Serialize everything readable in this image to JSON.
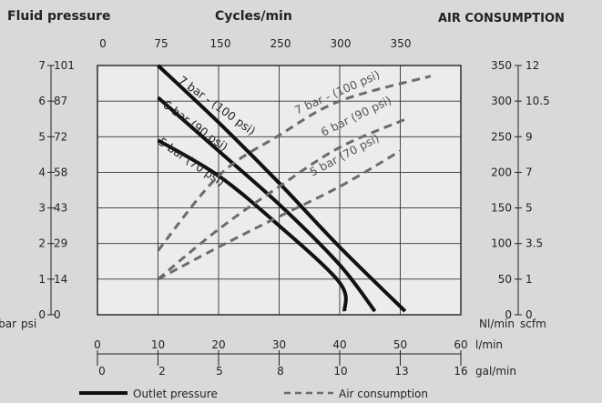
{
  "headers": {
    "left": "Fluid pressure",
    "center": "Cycles/min",
    "right": "AIR CONSUMPTION"
  },
  "chart_data": {
    "type": "line",
    "cycles_ticks": [
      "0",
      "75",
      "150",
      "250",
      "300",
      "350"
    ],
    "bar_ticks": [
      "0",
      "1",
      "2",
      "3",
      "4",
      "5",
      "6",
      "7"
    ],
    "psi_ticks": [
      "0",
      "14",
      "29",
      "43",
      "58",
      "72",
      "87",
      "101"
    ],
    "nlmin_ticks": [
      "0",
      "50",
      "100",
      "150",
      "200",
      "250",
      "300",
      "350"
    ],
    "scfm_ticks": [
      "0",
      "1",
      "3.5",
      "5",
      "7",
      "9",
      "10.5",
      "12"
    ],
    "lmin_ticks": [
      "0",
      "10",
      "20",
      "30",
      "40",
      "50",
      "60"
    ],
    "galmin_ticks": [
      "0",
      "2",
      "5",
      "8",
      "10",
      "13",
      "16"
    ],
    "left_unit_bar": "bar",
    "left_unit_psi": "psi",
    "right_unit_nl": "Nl/min",
    "right_unit_scfm": "scfm",
    "lmin_unit": "l/min",
    "galmin_unit": "gal/min",
    "xlim_lmin": [
      0,
      60
    ],
    "ylim_bar": [
      0,
      7
    ],
    "y2lim_nlmin": [
      0,
      350
    ],
    "grid": true,
    "legend_position": "bottom",
    "series": [
      {
        "name": "Outlet pressure",
        "kind": "outlet",
        "style": "solid",
        "label": "7 bar - (100 psi)",
        "points": [
          [
            10,
            7.0
          ],
          [
            20,
            5.4
          ],
          [
            30,
            3.7
          ],
          [
            40,
            1.9
          ],
          [
            50.8,
            0.1
          ]
        ]
      },
      {
        "name": "Outlet pressure",
        "kind": "outlet",
        "style": "solid",
        "label": "6 bar (90 psi)",
        "points": [
          [
            10,
            6.1
          ],
          [
            20,
            4.6
          ],
          [
            30,
            3.1
          ],
          [
            40,
            1.4
          ],
          [
            45.8,
            0.1
          ]
        ]
      },
      {
        "name": "Outlet pressure",
        "kind": "outlet",
        "style": "solid",
        "label": "5 bar (70 psi)",
        "points": [
          [
            10,
            4.9
          ],
          [
            20,
            3.9
          ],
          [
            30,
            2.5
          ],
          [
            40,
            0.9
          ],
          [
            40.8,
            0.1
          ]
        ]
      },
      {
        "name": "Air consumption",
        "kind": "air",
        "style": "dashed",
        "label": "7 bar - (100 psi)",
        "points": [
          [
            10,
            90
          ],
          [
            20,
            195
          ],
          [
            30,
            252
          ],
          [
            40,
            300
          ],
          [
            55,
            335
          ]
        ]
      },
      {
        "name": "Air consumption",
        "kind": "air",
        "style": "dashed",
        "label": "6 bar (90 psi)",
        "points": [
          [
            10,
            50
          ],
          [
            20,
            120
          ],
          [
            30,
            180
          ],
          [
            40,
            235
          ],
          [
            51,
            275
          ]
        ]
      },
      {
        "name": "Air consumption",
        "kind": "air",
        "style": "dashed",
        "label": "5 bar (70 psi)",
        "points": [
          [
            10,
            50
          ],
          [
            20,
            95
          ],
          [
            30,
            138
          ],
          [
            40,
            180
          ],
          [
            50,
            230
          ]
        ]
      }
    ],
    "legend": [
      {
        "label": "Outlet pressure",
        "style": "solid"
      },
      {
        "label": "Air consumption",
        "style": "dashed"
      }
    ]
  }
}
